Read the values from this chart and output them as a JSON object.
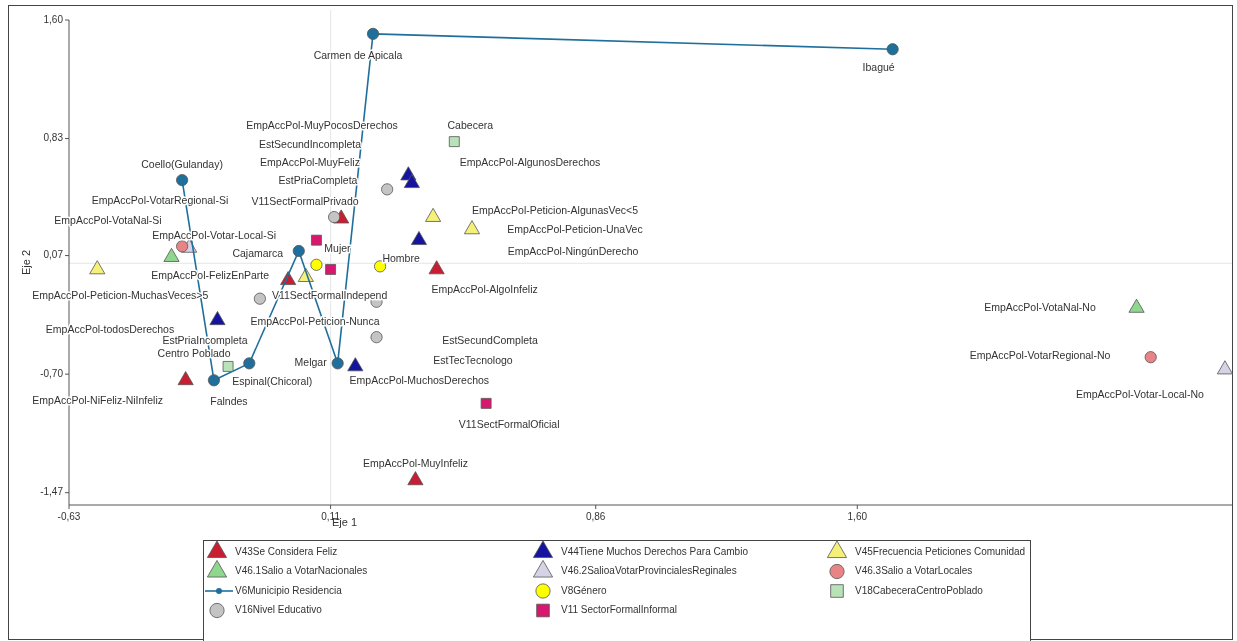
{
  "chart_data": {
    "type": "scatter",
    "xlabel": "Eje 1",
    "ylabel": "Eje 2",
    "xlim": [
      -0.63,
      2.66
    ],
    "ylim": [
      -1.55,
      1.6
    ],
    "xticks": [
      {
        "value": -0.63,
        "label": "-0,63"
      },
      {
        "value": 0.11,
        "label": "0,11"
      },
      {
        "value": 0.86,
        "label": "0,86"
      },
      {
        "value": 1.6,
        "label": "1,60"
      }
    ],
    "yticks": [
      {
        "value": -1.47,
        "label": "-1,47"
      },
      {
        "value": -0.7,
        "label": "-0,70"
      },
      {
        "value": 0.07,
        "label": "0,07"
      },
      {
        "value": 0.83,
        "label": "0,83"
      },
      {
        "value": 1.6,
        "label": "1,60"
      }
    ],
    "legend": "bottom",
    "ref_lines": [
      {
        "axis": "x",
        "value": 0.11,
        "color": "#e6e6e6"
      },
      {
        "axis": "y",
        "value": 0.02,
        "color": "#e6e6e6"
      }
    ],
    "series": [
      {
        "name": "V43Se Considera Feliz",
        "color": "#c81e32",
        "marker": "triangle",
        "x": [
          0.14,
          0.41,
          -0.3,
          0.35,
          -0.01
        ],
        "values": [
          0.31,
          -0.02,
          -0.74,
          -1.39,
          -0.09
        ]
      },
      {
        "name": "V44Tiene Muchos Derechos Para Cambio",
        "color": "#14149e",
        "marker": "triangle",
        "x": [
          0.33,
          0.34,
          0.36,
          -0.21,
          0.18
        ],
        "values": [
          0.59,
          0.54,
          0.17,
          -0.35,
          -0.65
        ]
      },
      {
        "name": "V45Frecuencia Peticiones Comunidad",
        "color": "#f5f07a",
        "marker": "triangle",
        "x": [
          0.4,
          0.51,
          -0.55,
          0.04
        ],
        "values": [
          0.32,
          0.24,
          -0.02,
          -0.07
        ]
      },
      {
        "name": "V46.1Salio a VotarNacionales",
        "color": "#8fd68f",
        "marker": "triangle",
        "x": [
          -0.34,
          2.39
        ],
        "values": [
          0.06,
          -0.27
        ]
      },
      {
        "name": "V46.2SalioaVotarProvincialesReginales",
        "color": "#d8d2e6",
        "marker": "triangle",
        "x": [
          -0.29,
          2.64
        ],
        "values": [
          0.12,
          -0.67
        ]
      },
      {
        "name": "V46.3Salio a VotarLocales",
        "color": "#e88486",
        "marker": "circle",
        "x": [
          -0.31,
          2.43
        ],
        "values": [
          0.13,
          -0.59
        ]
      },
      {
        "name": "V6Municipio Residencia",
        "type": "line",
        "color": "#1f6f9c",
        "marker": "circle",
        "x": [
          1.7,
          0.23,
          0.13,
          0.02,
          -0.12,
          -0.22,
          -0.31
        ],
        "values": [
          1.41,
          1.51,
          -0.63,
          0.1,
          -0.63,
          -0.74,
          0.56
        ]
      },
      {
        "name": "V8Género",
        "color": "#ffff00",
        "marker": "circle",
        "x": [
          0.07,
          0.25
        ],
        "values": [
          0.01,
          0.0
        ]
      },
      {
        "name": "V18CabeceraCentroPoblado",
        "color": "#b8e2b8",
        "marker": "square",
        "x": [
          0.46,
          -0.18
        ],
        "values": [
          0.81,
          -0.65
        ]
      },
      {
        "name": "V16Nivel Educativo",
        "color": "#c4c4c4",
        "marker": "circle",
        "x": [
          0.27,
          0.12,
          -0.09,
          0.24,
          0.24
        ],
        "values": [
          0.5,
          0.32,
          -0.21,
          -0.23,
          -0.46
        ]
      },
      {
        "name": "V11 SectorFormalInformal",
        "color": "#d8186e",
        "marker": "square",
        "x": [
          0.07,
          0.11,
          0.55
        ],
        "values": [
          0.17,
          -0.02,
          -0.89
        ]
      }
    ],
    "annotations": [
      {
        "text": "Carmen de Apicala",
        "x": 0.23,
        "y": 1.51
      },
      {
        "text": "Ibagué",
        "x": 1.7,
        "y": 1.41
      },
      "EmpAccPol-MuyPocosDerechos",
      {
        "text": "Cabecera",
        "x": 0.46,
        "y": 0.81
      },
      "EstSecundIncompleta",
      "EmpAccPol-AlgunosDerechos",
      "EmpAccPol-MuyFeliz",
      "EstPriaCompleta",
      {
        "text": "Coello(Gulanday)",
        "x": -0.31,
        "y": 0.56
      },
      "EmpAccPol-VotarRegional-Si",
      "V11SectFormalPrivado",
      "EmpAccPol-Peticion-AlgunasVec<5",
      "EmpAccPol-VotaNal-Si",
      "EmpAccPol-Peticion-UnaVec",
      {
        "text": "EmpAccPol-Votar-Local-Si",
        "x": -0.31,
        "y": 0.13
      },
      "EmpAccPol-NingúnDerecho",
      {
        "text": "Mujer",
        "x": 0.07,
        "y": 0.01
      },
      {
        "text": "Cajamarca",
        "x": 0.02,
        "y": 0.1
      },
      {
        "text": "Hombre",
        "x": 0.25,
        "y": 0.0
      },
      {
        "text": "EmpAccPol-FelizEnParte",
        "x": -0.01,
        "y": -0.09
      },
      {
        "text": "EmpAccPol-Peticion-MuchasVeces>5",
        "x": -0.55,
        "y": -0.02
      },
      {
        "text": "V11SectFormalIndepend",
        "x": 0.11,
        "y": -0.02
      },
      {
        "text": "EmpAccPol-AlgoInfeliz",
        "x": 0.41,
        "y": -0.02
      },
      "EmpAccPol-Peticion-Nunca",
      "EmpAccPol-todosDerechos",
      "EstPriaIncompleta",
      "EstSecundCompleta",
      {
        "text": "Centro Poblado",
        "x": -0.18,
        "y": -0.65
      },
      {
        "text": "Melgar",
        "x": 0.13,
        "y": -0.63
      },
      "EstTecTecnologo",
      {
        "text": "Espinal(Chicoral)",
        "x": -0.12,
        "y": -0.63
      },
      {
        "text": "EmpAccPol-MuchosDerechos",
        "x": 0.18,
        "y": -0.65
      },
      {
        "text": "EmpAccPol-NiFeliz-NiInfeliz",
        "x": -0.3,
        "y": -0.74
      },
      {
        "text": "Falndes",
        "x": -0.22,
        "y": -0.74
      },
      {
        "text": "V11SectFormalOficial",
        "x": 0.55,
        "y": -0.89
      },
      {
        "text": "EmpAccPol-MuyInfeliz",
        "x": 0.35,
        "y": -1.39
      },
      "EmpAccPol-VotaNal-No",
      "EmpAccPol-VotarRegional-No",
      {
        "text": "EmpAccPol-Votar-Local-No",
        "x": 2.64,
        "y": -0.67
      }
    ]
  }
}
